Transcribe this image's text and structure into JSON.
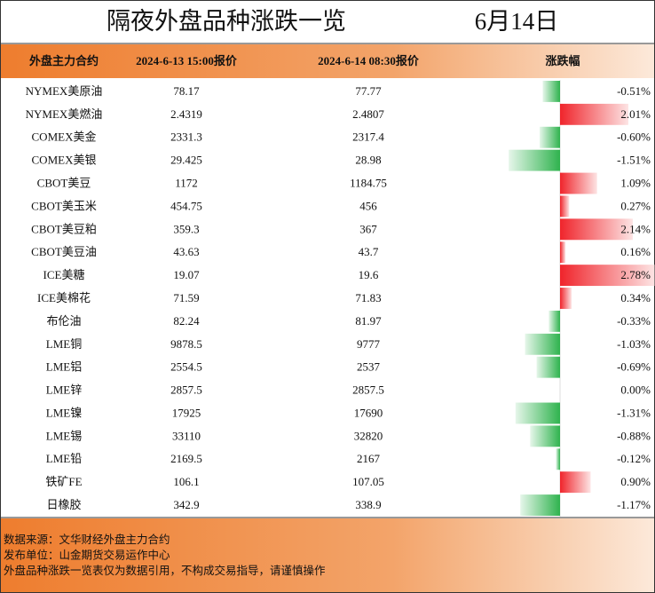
{
  "header": {
    "title": "隔夜外盘品种涨跌一览",
    "date": "6月14日"
  },
  "table": {
    "columns": [
      "外盘主力合约",
      "2024-6-13 15:00报价",
      "2024-6-14 08:30报价",
      "涨跌幅"
    ],
    "rows": [
      [
        "NYMEX美原油",
        "78.17",
        "77.77"
      ],
      [
        "NYMEX美燃油",
        "2.4319",
        "2.4807"
      ],
      [
        "COMEX美金",
        "2331.3",
        "2317.4"
      ],
      [
        "COMEX美银",
        "29.425",
        "28.98"
      ],
      [
        "CBOT美豆",
        "1172",
        "1184.75"
      ],
      [
        "CBOT美玉米",
        "454.75",
        "456"
      ],
      [
        "CBOT美豆粕",
        "359.3",
        "367"
      ],
      [
        "CBOT美豆油",
        "43.63",
        "43.7"
      ],
      [
        "ICE美糖",
        "19.07",
        "19.6"
      ],
      [
        "ICE美棉花",
        "71.59",
        "71.83"
      ],
      [
        "布伦油",
        "82.24",
        "81.97"
      ],
      [
        "LME铜",
        "9878.5",
        "9777"
      ],
      [
        "LME铝",
        "2554.5",
        "2537"
      ],
      [
        "LME锌",
        "2857.5",
        "2857.5"
      ],
      [
        "LME镍",
        "17925",
        "17690"
      ],
      [
        "LME锡",
        "33110",
        "32820"
      ],
      [
        "LME铅",
        "2169.5",
        "2167"
      ],
      [
        "铁矿FE",
        "106.1",
        "107.05"
      ],
      [
        "日橡胶",
        "342.9",
        "338.9"
      ]
    ],
    "changes": [
      -0.51,
      2.01,
      -0.6,
      -1.51,
      1.09,
      0.27,
      2.14,
      0.16,
      2.78,
      0.34,
      -0.33,
      -1.03,
      -0.69,
      0.0,
      -1.31,
      -0.88,
      -0.12,
      0.9,
      -1.17
    ],
    "change_labels": [
      "-0.51%",
      "2.01%",
      "-0.60%",
      "-1.51%",
      "1.09%",
      "0.27%",
      "2.14%",
      "0.16%",
      "2.78%",
      "0.34%",
      "-0.33%",
      "-1.03%",
      "-0.69%",
      "0.00%",
      "-1.31%",
      "-0.88%",
      "-0.12%",
      "0.90%",
      "-1.17%"
    ]
  },
  "footer": {
    "lines": [
      "数据来源：文华财经外盘主力合约",
      "发布单位：山金期货交易运作中心",
      "外盘品种涨跌一览表仅为数据引用，不构成交易指导，请谨慎操作"
    ]
  }
}
